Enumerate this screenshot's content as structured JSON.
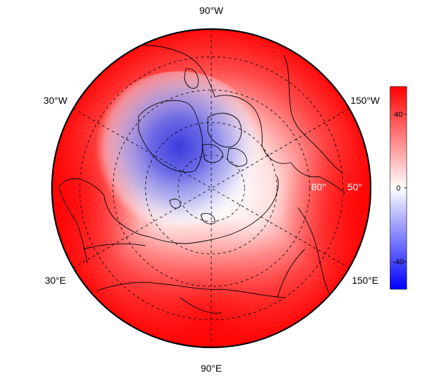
{
  "map": {
    "projection": "north polar stereographic",
    "longitude_labels": {
      "top": "90°W",
      "upper_left": "30°W",
      "upper_right": "150°W",
      "lower_left": "30°E",
      "lower_right": "150°E",
      "bottom": "90°E"
    },
    "latitude_labels": [
      "80°",
      "50°"
    ],
    "field_colors": {
      "positive": "#ff0000",
      "neutral": "#ffffff",
      "negative": "#0000ff",
      "coastline": "#000000"
    }
  },
  "colorbar": {
    "ticks": [
      "40",
      "0",
      "-40"
    ],
    "tick_values": [
      40,
      0,
      -40
    ],
    "range": [
      -55,
      55
    ],
    "colors": [
      "#0000ff",
      "#ffffff",
      "#ff0000"
    ]
  }
}
